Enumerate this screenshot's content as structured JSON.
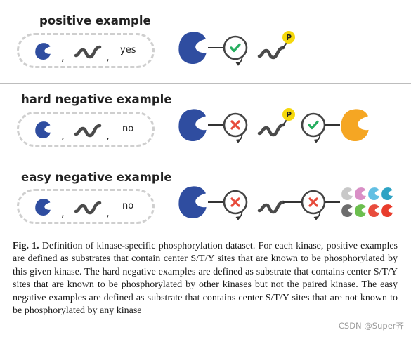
{
  "rows": [
    {
      "title": "positive example",
      "pill_word": "yes"
    },
    {
      "title": "hard negative example",
      "pill_word": "no"
    },
    {
      "title": "easy negative example",
      "pill_word": "no"
    }
  ],
  "comma": ",",
  "phospho_label": "P",
  "colors": {
    "kinase_blue": "#2f4da0",
    "substrate_gray": "#4a4a4a",
    "check_green": "#27ae60",
    "cross_red": "#e74c3c",
    "phospho_yellow": "#f5d80c",
    "other_kinase_orange": "#f5a623",
    "small_kinases": [
      "#c8c8c8",
      "#d98fc6",
      "#62bfe3",
      "#2ea3c4",
      "#6d6d6d",
      "#6cbf4f",
      "#e84c3d",
      "#e83c2c"
    ]
  },
  "caption": {
    "label": "Fig. 1.",
    "text": "Definition of kinase-specific phosphorylation dataset. For each kinase, positive examples are defined as substrates that contain center S/T/Y sites that are known to be phosphorylated by this given kinase. The hard negative examples are defined as substrate that contains center S/T/Y sites that are known to be phosphorylated by other kinases but not the paired kinase. The easy negative examples are defined as substrate that contains center S/T/Y sites that are not known to be phosphorylated by any kinase"
  },
  "watermark": "CSDN @Super齐"
}
